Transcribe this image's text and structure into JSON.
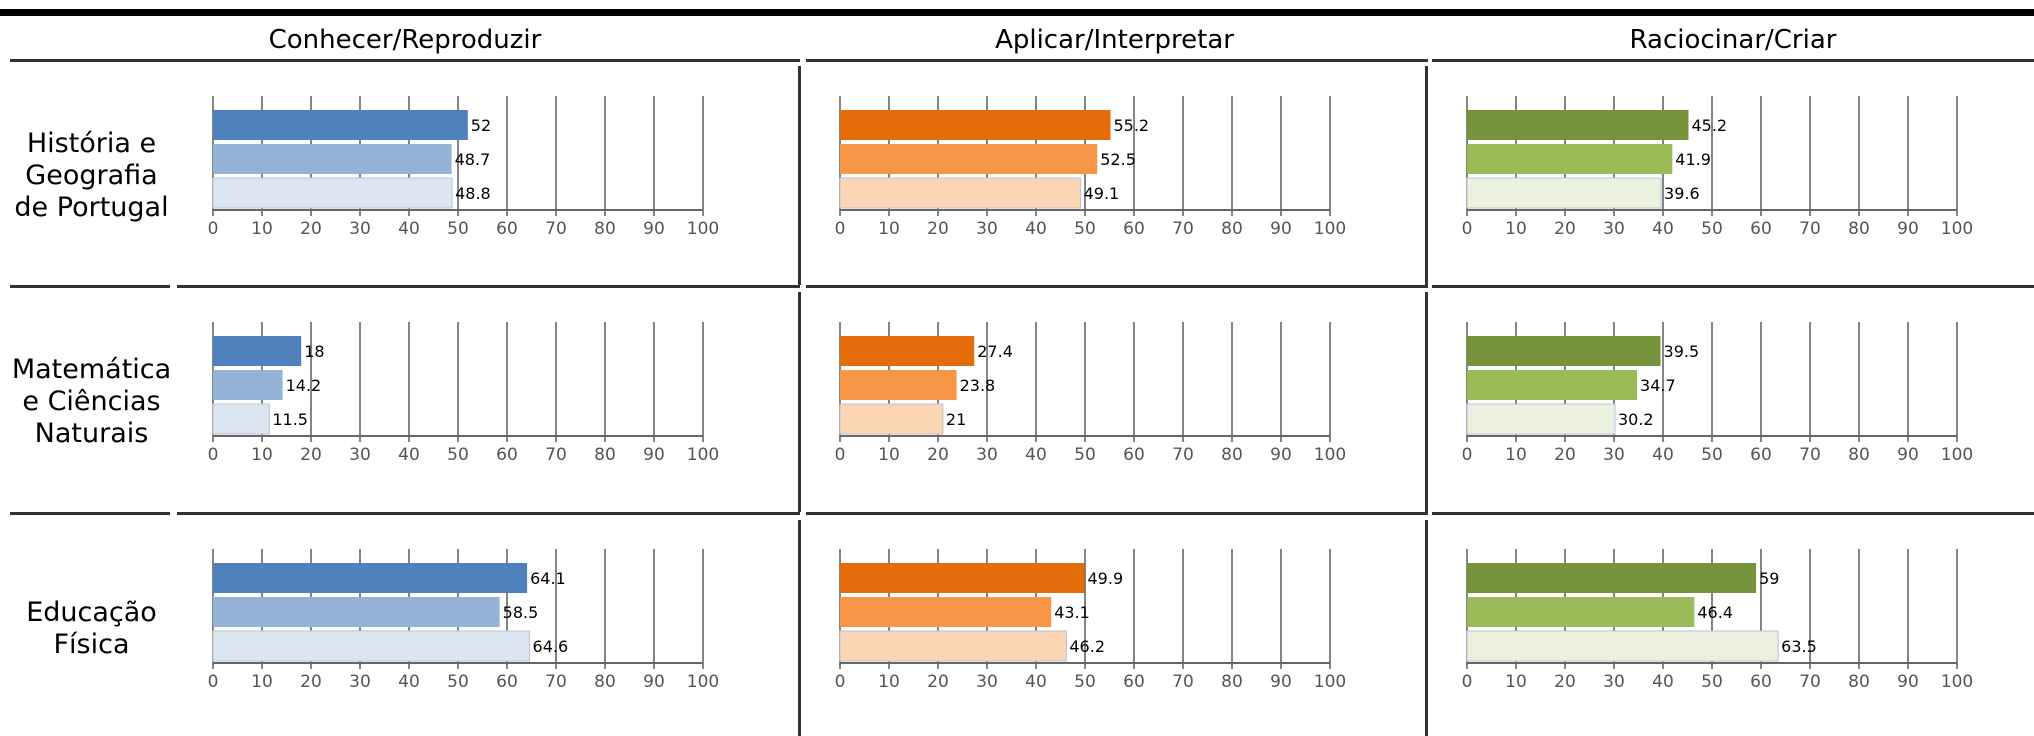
{
  "chart_data": {
    "type": "bar",
    "title": "",
    "columns": [
      "Conhecer/Reproduzir",
      "Aplicar/Interpretar",
      "Raciocinar/Criar"
    ],
    "rows": [
      [
        "História e",
        "Geografia",
        "de Portugal"
      ],
      [
        "Matemática",
        "e Ciências",
        "Naturais"
      ],
      [
        "Educação",
        "Física"
      ]
    ],
    "xlim": [
      0,
      100
    ],
    "xticks": [
      0,
      10,
      20,
      30,
      40,
      50,
      60,
      70,
      80,
      90,
      100
    ],
    "grid": true,
    "colors": [
      [
        "#4f81bd",
        "#95b3d7",
        "#dce6f1"
      ],
      [
        "#e46c0a",
        "#f79646",
        "#fcd5b4"
      ],
      [
        "#77933c",
        "#9bbb59",
        "#ebf1de"
      ]
    ],
    "values": [
      [
        [
          52,
          48.7,
          48.8
        ],
        [
          55.2,
          52.5,
          49.1
        ],
        [
          45.2,
          41.9,
          39.6
        ]
      ],
      [
        [
          18,
          14.2,
          11.5
        ],
        [
          27.4,
          23.8,
          21
        ],
        [
          39.5,
          34.7,
          30.2
        ]
      ],
      [
        [
          64.1,
          58.5,
          64.6
        ],
        [
          49.9,
          43.1,
          46.2
        ],
        [
          59,
          46.4,
          63.5
        ]
      ]
    ],
    "labels": [
      [
        [
          "52",
          "48.7",
          "48.8"
        ],
        [
          "55.2",
          "52.5",
          "49.1"
        ],
        [
          "45.2",
          "41.9",
          "39.6"
        ]
      ],
      [
        [
          "18",
          "14.2",
          "11.5"
        ],
        [
          "27.4",
          "23.8",
          "21"
        ],
        [
          "39.5",
          "34.7",
          "30.2"
        ]
      ],
      [
        [
          "64.1",
          "58.5",
          "64.6"
        ],
        [
          "49.9",
          "43.1",
          "46.2"
        ],
        [
          "59",
          "46.4",
          "63.5"
        ]
      ]
    ]
  }
}
